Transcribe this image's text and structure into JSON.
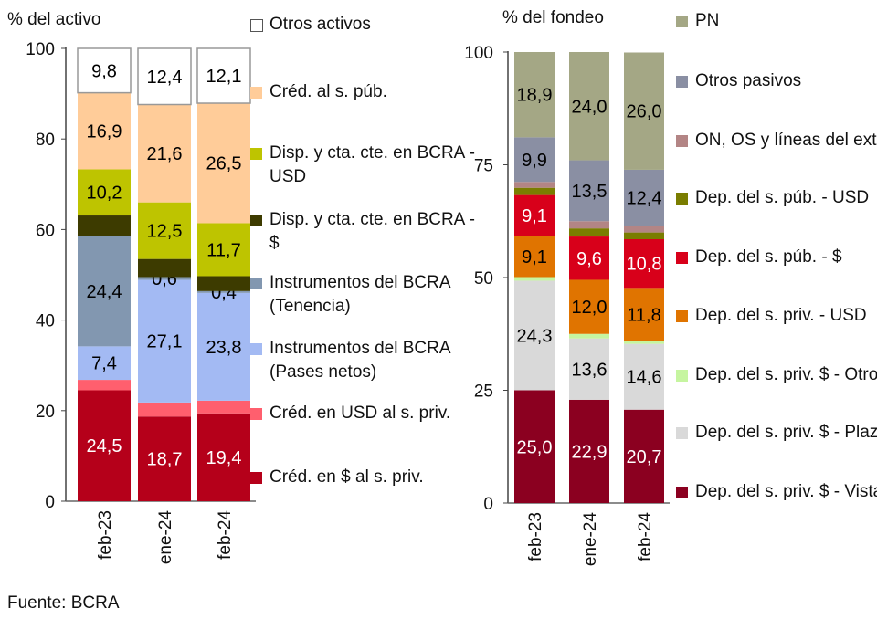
{
  "source": "Fuente: BCRA",
  "chart_data": [
    {
      "type": "bar",
      "stacked": true,
      "ylabel": "% del activo",
      "ylim": [
        0,
        100
      ],
      "yticks": [
        "0",
        "20",
        "40",
        "60",
        "80",
        "100"
      ],
      "categories": [
        "feb-23",
        "ene-24",
        "feb-24"
      ],
      "legend": "right",
      "series": [
        {
          "name": "Créd. en $ al s. priv.",
          "color": "#b5001a",
          "label_color": "#ffffff",
          "values": [
            24.5,
            18.7,
            19.4
          ],
          "labels": [
            "24,5",
            "18,7",
            "19,4"
          ]
        },
        {
          "name": "Créd. en USD al s. priv.",
          "color": "#ff5f6e",
          "label_color": "#000000",
          "values": [
            2.3,
            3.1,
            2.8
          ],
          "labels": [
            null,
            null,
            null
          ]
        },
        {
          "name": "Instrumentos del BCRA (Pases netos)",
          "color": "#a3baf3",
          "label_color": "#000000",
          "values": [
            7.4,
            27.1,
            23.8
          ],
          "labels": [
            "7,4",
            "27,1",
            "23,8"
          ]
        },
        {
          "name": "Instrumentos del BCRA (Tenencia)",
          "color": "#8297b0",
          "label_color": "#000000",
          "values": [
            24.4,
            0.6,
            0.4
          ],
          "labels": [
            "24,4",
            "0,6",
            "0,4"
          ]
        },
        {
          "name": "Disp. y cta. cte. en BCRA - $",
          "color": "#3d3b00",
          "label_color": "#000000",
          "values": [
            4.5,
            4.0,
            3.3
          ],
          "labels": [
            null,
            null,
            null
          ]
        },
        {
          "name": "Disp. y cta. cte. en BCRA - USD",
          "color": "#bec400",
          "label_color": "#000000",
          "values": [
            10.2,
            12.5,
            11.7
          ],
          "labels": [
            "10,2",
            "12,5",
            "11,7"
          ]
        },
        {
          "name": "Créd. al s. púb.",
          "color": "#ffcc99",
          "label_color": "#000000",
          "values": [
            16.9,
            21.6,
            26.5
          ],
          "labels": [
            "16,9",
            "21,6",
            "26,5"
          ]
        },
        {
          "name": "Otros activos",
          "color": "#ffffff",
          "label_color": "#000000",
          "values": [
            9.8,
            12.4,
            12.1
          ],
          "labels": [
            "9,8",
            "12,4",
            "12,1"
          ]
        }
      ]
    },
    {
      "type": "bar",
      "stacked": true,
      "ylabel": "% del fondeo",
      "ylim": [
        0,
        100
      ],
      "yticks": [
        "0",
        "25",
        "50",
        "75",
        "100"
      ],
      "categories": [
        "feb-23",
        "ene-24",
        "feb-24"
      ],
      "legend": "right",
      "series": [
        {
          "name": "Dep. del s. priv. $ - Vista",
          "color": "#8b0020",
          "label_color": "#ffffff",
          "values": [
            25.0,
            22.9,
            20.7
          ],
          "labels": [
            "25,0",
            "22,9",
            "20,7"
          ]
        },
        {
          "name": "Dep. del s. priv. $ - Plazo",
          "color": "#d9d9d9",
          "label_color": "#000000",
          "values": [
            24.3,
            13.6,
            14.6
          ],
          "labels": [
            "24,3",
            "13,6",
            "14,6"
          ]
        },
        {
          "name": "Dep. del s. priv. $ - Otros",
          "color": "#c6f5a0",
          "label_color": "#000000",
          "values": [
            0.8,
            1.0,
            0.6
          ],
          "labels": [
            null,
            null,
            null
          ]
        },
        {
          "name": "Dep. del s. priv. - USD",
          "color": "#e07400",
          "label_color": "#000000",
          "values": [
            9.1,
            12.0,
            11.8
          ],
          "labels": [
            "9,1",
            "12,0",
            "11,8"
          ]
        },
        {
          "name": "Dep. del s. púb. - $",
          "color": "#d8001a",
          "label_color": "#ffffff",
          "values": [
            9.1,
            9.6,
            10.8
          ],
          "labels": [
            "9,1",
            "9,6",
            "10,8"
          ]
        },
        {
          "name": "Dep. del s. púb. - USD",
          "color": "#7a7d00",
          "label_color": "#000000",
          "values": [
            1.6,
            1.8,
            1.5
          ],
          "labels": [
            null,
            null,
            null
          ]
        },
        {
          "name": "ON, OS y líneas del ext.",
          "color": "#b38585",
          "label_color": "#000000",
          "values": [
            1.3,
            1.6,
            1.5
          ],
          "labels": [
            null,
            null,
            null
          ]
        },
        {
          "name": "Otros pasivos",
          "color": "#8a8fa3",
          "label_color": "#000000",
          "values": [
            9.9,
            13.5,
            12.4
          ],
          "labels": [
            "9,9",
            "13,5",
            "12,4"
          ]
        },
        {
          "name": "PN",
          "color": "#a4a785",
          "label_color": "#000000",
          "values": [
            18.9,
            24.0,
            26.0
          ],
          "labels": [
            "18,9",
            "24,0",
            "26,0"
          ]
        }
      ]
    }
  ]
}
